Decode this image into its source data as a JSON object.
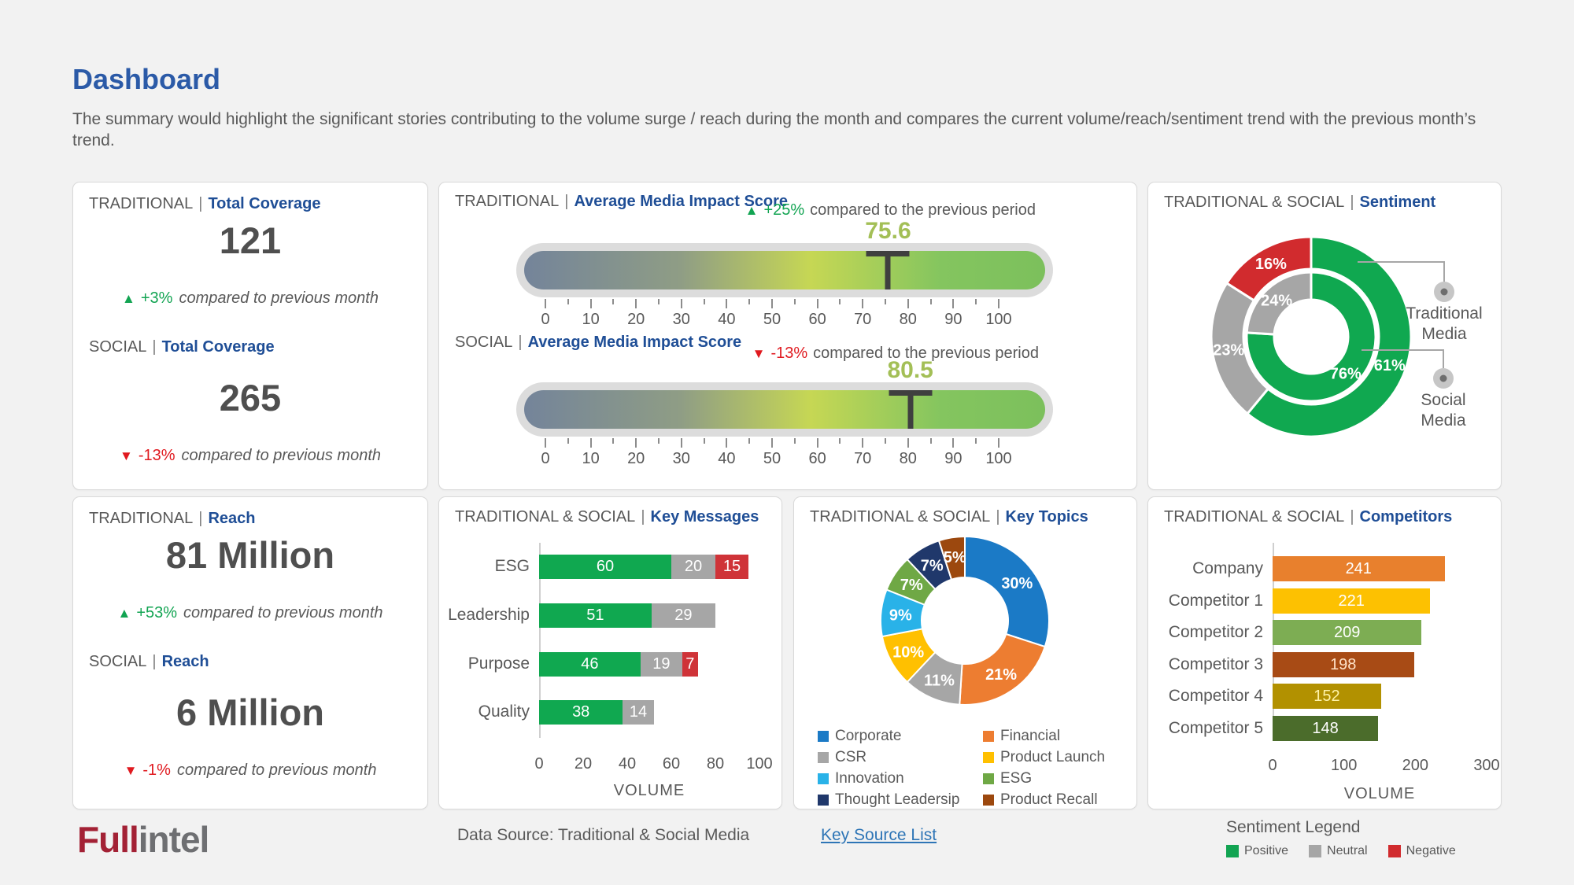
{
  "ui": {
    "sep": "|"
  },
  "page": {
    "title": "Dashboard",
    "subtitle": "The summary would highlight the significant stories contributing to the volume surge / reach during the month and compares the current volume/reach/sentiment trend with the previous month’s trend.",
    "footer": {
      "logo_full": "Full",
      "logo_intel": "intel",
      "data_source": "Data Source: Traditional & Social Media",
      "key_source_link": "Key Source List",
      "sentiment_legend_title": "Sentiment Legend",
      "sentiment_legend": [
        {
          "label": "Positive",
          "color": "#12a452"
        },
        {
          "label": "Neutral",
          "color": "#a6a6a6"
        },
        {
          "label": "Negative",
          "color": "#d12b2e"
        }
      ]
    }
  },
  "cards": {
    "coverage": {
      "sections": [
        {
          "scope": "TRADITIONAL",
          "metric": "Total Coverage",
          "value": "121",
          "direction": "up",
          "change": "+3%",
          "caption": "compared to previous month"
        },
        {
          "scope": "SOCIAL",
          "metric": "Total Coverage",
          "value": "265",
          "direction": "down",
          "change": "-13%",
          "caption": "compared to previous month"
        }
      ]
    },
    "impact": {
      "sections": [
        {
          "scope": "TRADITIONAL",
          "metric": "Average Media Impact Score",
          "direction": "up",
          "change": "+25%",
          "caption": "compared to the previous period"
        },
        {
          "scope": "SOCIAL",
          "metric": "Average Media Impact Score",
          "direction": "down",
          "change": "-13%",
          "caption": "compared to the previous period"
        }
      ]
    },
    "sentiment": {
      "scope": "TRADITIONAL & SOCIAL",
      "metric": "Sentiment"
    },
    "reach": {
      "sections": [
        {
          "scope": "TRADITIONAL",
          "metric": "Reach",
          "value": "81 Million",
          "direction": "up",
          "change": "+53%",
          "caption": "compared to previous month"
        },
        {
          "scope": "SOCIAL",
          "metric": "Reach",
          "value": "6 Million",
          "direction": "down",
          "change": "-1%",
          "caption": "compared to previous month"
        }
      ]
    },
    "key_messages": {
      "scope": "TRADITIONAL & SOCIAL",
      "metric": "Key Messages"
    },
    "key_topics": {
      "scope": "TRADITIONAL & SOCIAL",
      "metric": "Key Topics"
    },
    "competitors": {
      "scope": "TRADITIONAL & SOCIAL",
      "metric": "Competitors"
    }
  },
  "chart_data": [
    {
      "id": "gauge-traditional",
      "type": "gauge",
      "title": "TRADITIONAL | Average Media Impact Score",
      "value": 75.6,
      "min": 0,
      "max": 100,
      "tick_step": 5,
      "label_step": 10,
      "value_color": "#a3bf56",
      "track_gradient": [
        {
          "color": "#74849a",
          "pos": 0
        },
        {
          "color": "#8f9d85",
          "pos": 30
        },
        {
          "color": "#c6d754",
          "pos": 55
        },
        {
          "color": "#84c55f",
          "pos": 80
        },
        {
          "color": "#7cc05c",
          "pos": 100
        }
      ]
    },
    {
      "id": "gauge-social",
      "type": "gauge",
      "title": "SOCIAL | Average Media Impact Score",
      "value": 80.5,
      "min": 0,
      "max": 100,
      "tick_step": 5,
      "label_step": 10,
      "value_color": "#a3bf56",
      "track_gradient": [
        {
          "color": "#74849a",
          "pos": 0
        },
        {
          "color": "#8f9d85",
          "pos": 30
        },
        {
          "color": "#c6d754",
          "pos": 55
        },
        {
          "color": "#84c55f",
          "pos": 80
        },
        {
          "color": "#7cc05c",
          "pos": 100
        }
      ]
    },
    {
      "id": "sentiment",
      "type": "pie",
      "title": "TRADITIONAL & SOCIAL | Sentiment",
      "rings": [
        {
          "name": "Traditional Media",
          "position": "outer",
          "slices": [
            {
              "label": "61%",
              "value": 61,
              "color": "#10a850",
              "sentiment": "Positive"
            },
            {
              "label": "23%",
              "value": 23,
              "color": "#a6a6a6",
              "sentiment": "Neutral"
            },
            {
              "label": "16%",
              "value": 16,
              "color": "#d12b2e",
              "sentiment": "Negative"
            }
          ]
        },
        {
          "name": "Social Media",
          "position": "inner",
          "slices": [
            {
              "label": "76%",
              "value": 76,
              "color": "#10a850",
              "sentiment": "Positive"
            },
            {
              "label": "24%",
              "value": 24,
              "color": "#a6a6a6",
              "sentiment": "Neutral"
            }
          ]
        }
      ]
    },
    {
      "id": "key-messages",
      "type": "bar",
      "stacked": true,
      "orientation": "horizontal",
      "title": "TRADITIONAL & SOCIAL | Key Messages",
      "categories": [
        "ESG",
        "Leadership",
        "Purpose",
        "Quality"
      ],
      "series": [
        {
          "name": "Positive",
          "color": "#10a850",
          "values": [
            60,
            51,
            46,
            38
          ]
        },
        {
          "name": "Neutral",
          "color": "#a6a6a6",
          "values": [
            20,
            29,
            19,
            14
          ]
        },
        {
          "name": "Negative",
          "color": "#cf3338",
          "values": [
            15,
            0,
            7,
            0
          ]
        }
      ],
      "xlabel": "VOLUME",
      "xlim": [
        0,
        100
      ],
      "xticks": [
        0,
        20,
        40,
        60,
        80,
        100
      ]
    },
    {
      "id": "key-topics",
      "type": "pie",
      "title": "TRADITIONAL & SOCIAL | Key Topics",
      "slices": [
        {
          "name": "Corporate",
          "label": "30%",
          "value": 30,
          "color": "#1b7ac6"
        },
        {
          "name": "Financial",
          "label": "21%",
          "value": 21,
          "color": "#ed7d31"
        },
        {
          "name": "CSR",
          "label": "11%",
          "value": 11,
          "color": "#a6a6a6"
        },
        {
          "name": "Product Launch",
          "label": "10%",
          "value": 10,
          "color": "#ffc000"
        },
        {
          "name": "Innovation",
          "label": "9%",
          "value": 9,
          "color": "#29b2e8"
        },
        {
          "name": "ESG",
          "label": "7%",
          "value": 7,
          "color": "#6fa845"
        },
        {
          "name": "Thought Leadersip",
          "label": "7%",
          "value": 7,
          "color": "#20386b"
        },
        {
          "name": "Product Recall",
          "label": "5%",
          "value": 5,
          "color": "#9c480e",
          "label_color": "#f2c57f"
        }
      ],
      "legend_columns": [
        [
          "Corporate",
          "CSR",
          "Innovation",
          "Thought Leadersip"
        ],
        [
          "Financial",
          "Product Launch",
          "ESG",
          "Product Recall"
        ]
      ]
    },
    {
      "id": "competitors",
      "type": "bar",
      "orientation": "horizontal",
      "title": "TRADITIONAL & SOCIAL | Competitors",
      "categories": [
        "Company",
        "Competitor 1",
        "Competitor 2",
        "Competitor 3",
        "Competitor 4",
        "Competitor 5"
      ],
      "values": [
        241,
        221,
        209,
        198,
        152,
        148
      ],
      "colors": [
        "#e8802d",
        "#fdc101",
        "#7dad53",
        "#a84b15",
        "#b29100",
        "#4b6c2b"
      ],
      "label_colors": [
        "#ffffff",
        "#ffffff",
        "#ffffff",
        "#ffe3c8",
        "#fff3a8",
        "#ffffff"
      ],
      "xlabel": "VOLUME",
      "xlim": [
        0,
        300
      ],
      "xticks": [
        0,
        100,
        200,
        300
      ]
    }
  ]
}
